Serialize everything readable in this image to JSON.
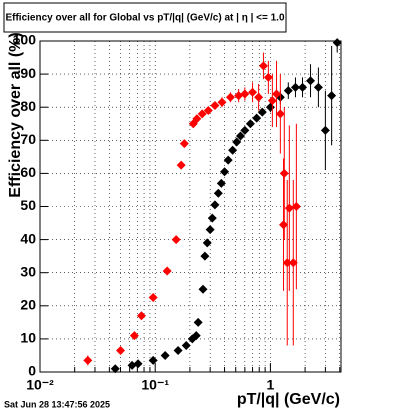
{
  "chart_data": {
    "type": "scatter",
    "title": "Efficiency over all for Global vs pT/|q| (GeV/c) at |  η  | <= 1.0",
    "x_label": "pT/|q| (GeV/c)",
    "y_label": "Efficiency over all (%)",
    "timestamp": "Sat Jun 28 13:47:56 2025",
    "log_x": true,
    "grid": true,
    "xlim": [
      0.01,
      4.1
    ],
    "ylim": [
      0,
      100
    ],
    "xticks": [
      {
        "value": 0.01,
        "label": "10⁻²"
      },
      {
        "value": 0.1,
        "label": "10⁻¹"
      },
      1
    ],
    "x_minor_ticks": [
      0.02,
      0.03,
      0.04,
      0.05,
      0.06,
      0.07,
      0.08,
      0.09,
      0.2,
      0.3,
      0.4,
      0.5,
      0.6,
      0.7,
      0.8,
      0.9,
      2,
      3,
      4
    ],
    "yticks": [
      0,
      10,
      20,
      30,
      40,
      50,
      60,
      70,
      80,
      90,
      100
    ],
    "series": [
      {
        "color": "#000000",
        "x": [
          0.045,
          0.063,
          0.071,
          0.096,
          0.122,
          0.158,
          0.186,
          0.21,
          0.227,
          0.236,
          0.26,
          0.27,
          0.283,
          0.3,
          0.313,
          0.33,
          0.353,
          0.375,
          0.4,
          0.43,
          0.47,
          0.51,
          0.55,
          0.6,
          0.67,
          0.76,
          0.85,
          1.0,
          1.22,
          1.43,
          1.65,
          1.9,
          2.23,
          2.61,
          3.0,
          3.4,
          3.8
        ],
        "values": [
          1,
          2,
          2.5,
          3.5,
          5,
          6.5,
          8,
          10,
          11,
          15,
          25,
          35,
          39,
          43,
          46.5,
          50.5,
          54,
          57,
          60.5,
          64,
          67,
          69.5,
          71.3,
          73,
          75,
          76.7,
          78.5,
          80,
          83,
          85,
          86,
          86,
          88,
          86,
          73,
          83.5,
          99.5
        ],
        "errors": [
          0.5,
          0.5,
          0.5,
          0.5,
          0.5,
          0.6,
          0.6,
          0.7,
          0.7,
          1,
          1,
          1,
          1,
          1,
          1,
          1,
          1,
          1,
          1,
          1,
          1,
          1,
          1,
          1,
          1,
          1,
          1,
          1.5,
          2,
          2.5,
          3,
          3,
          5,
          6,
          12,
          15,
          3
        ]
      },
      {
        "color": "#ff0000",
        "x": [
          0.026,
          0.05,
          0.066,
          0.076,
          0.096,
          0.127,
          0.152,
          0.168,
          0.179,
          0.214,
          0.23,
          0.256,
          0.289,
          0.33,
          0.38,
          0.45,
          0.53,
          0.6,
          0.7,
          0.79,
          0.87,
          0.96,
          1.04,
          1.13,
          1.22,
          1.3,
          1.32,
          1.4,
          1.46,
          1.58,
          1.68
        ],
        "values": [
          3.5,
          6.5,
          11,
          17,
          22.5,
          30.5,
          40,
          62.5,
          69,
          75,
          76.5,
          78,
          79,
          80.5,
          81.5,
          83,
          83.5,
          84,
          84.5,
          83,
          92.5,
          89,
          82,
          84,
          78,
          44.5,
          60,
          33,
          49.5,
          33,
          50
        ],
        "errors": [
          1.5,
          1,
          1,
          1,
          1,
          1,
          1,
          1,
          1,
          1,
          1,
          1,
          1,
          1,
          1.5,
          1.5,
          2,
          2,
          3,
          4,
          4,
          5,
          8,
          10,
          12,
          20,
          20,
          25,
          25,
          25,
          25
        ]
      }
    ]
  }
}
